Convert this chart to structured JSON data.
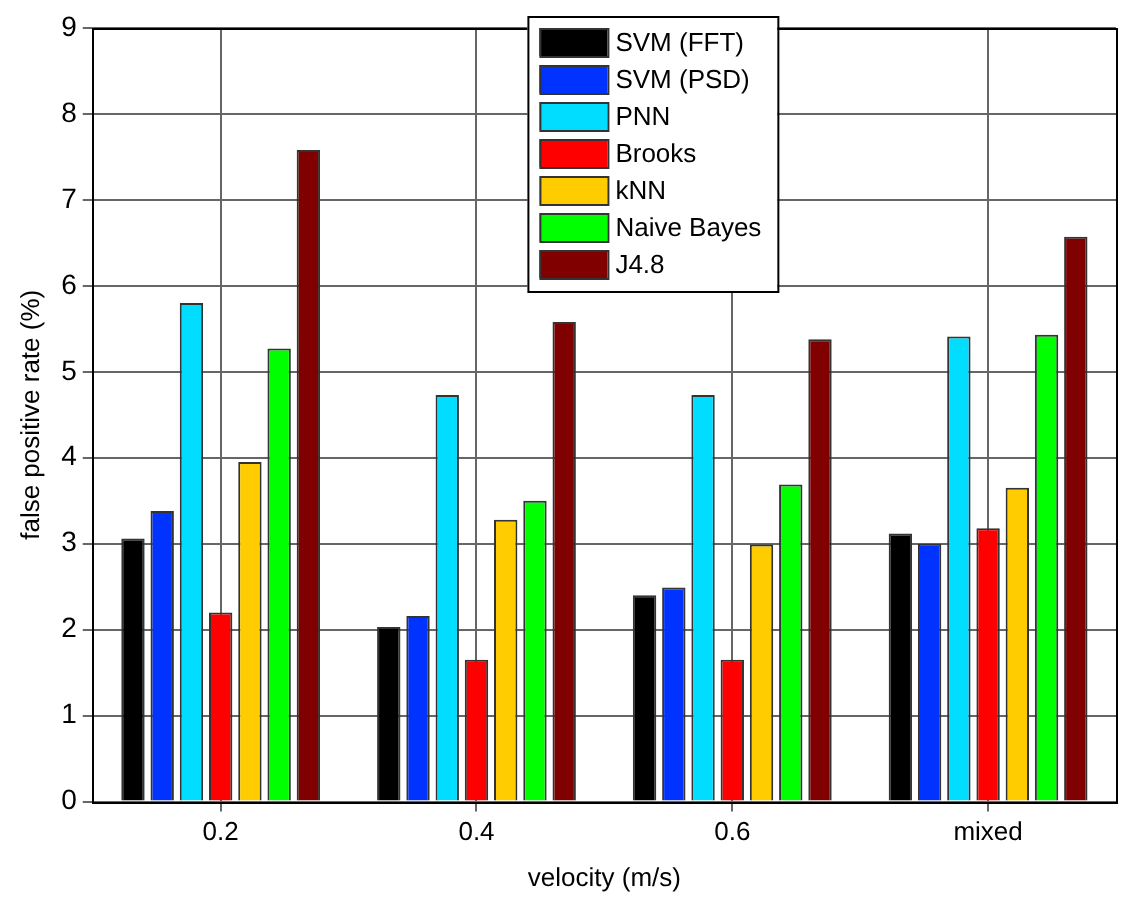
{
  "chart_data": {
    "type": "bar",
    "xlabel": "velocity (m/s)",
    "ylabel": "false positive rate (%)",
    "categories": [
      "0.2",
      "0.4",
      "0.6",
      "mixed"
    ],
    "series": [
      {
        "name": "SVM (FFT)",
        "color": "#000000",
        "values": [
          3.06,
          2.03,
          2.4,
          3.12
        ]
      },
      {
        "name": "SVM (PSD)",
        "color": "#0033ff",
        "values": [
          3.38,
          2.16,
          2.49,
          3.0
        ]
      },
      {
        "name": "PNN",
        "color": "#00ddff",
        "values": [
          5.8,
          4.73,
          4.73,
          5.41
        ]
      },
      {
        "name": "Brooks",
        "color": "#ff0000",
        "values": [
          2.2,
          1.65,
          1.65,
          3.18
        ]
      },
      {
        "name": "kNN",
        "color": "#ffcc00",
        "values": [
          3.95,
          3.28,
          2.99,
          3.65
        ]
      },
      {
        "name": "Naive Bayes",
        "color": "#00ff00",
        "values": [
          5.27,
          3.5,
          3.69,
          5.43
        ]
      },
      {
        "name": "J4.8",
        "color": "#800000",
        "values": [
          7.58,
          5.58,
          5.38,
          6.57
        ]
      }
    ],
    "ylim": [
      0,
      9
    ],
    "yticks": [
      0,
      1,
      2,
      3,
      4,
      5,
      6,
      7,
      8,
      9
    ],
    "grid": true,
    "legend": "top"
  }
}
